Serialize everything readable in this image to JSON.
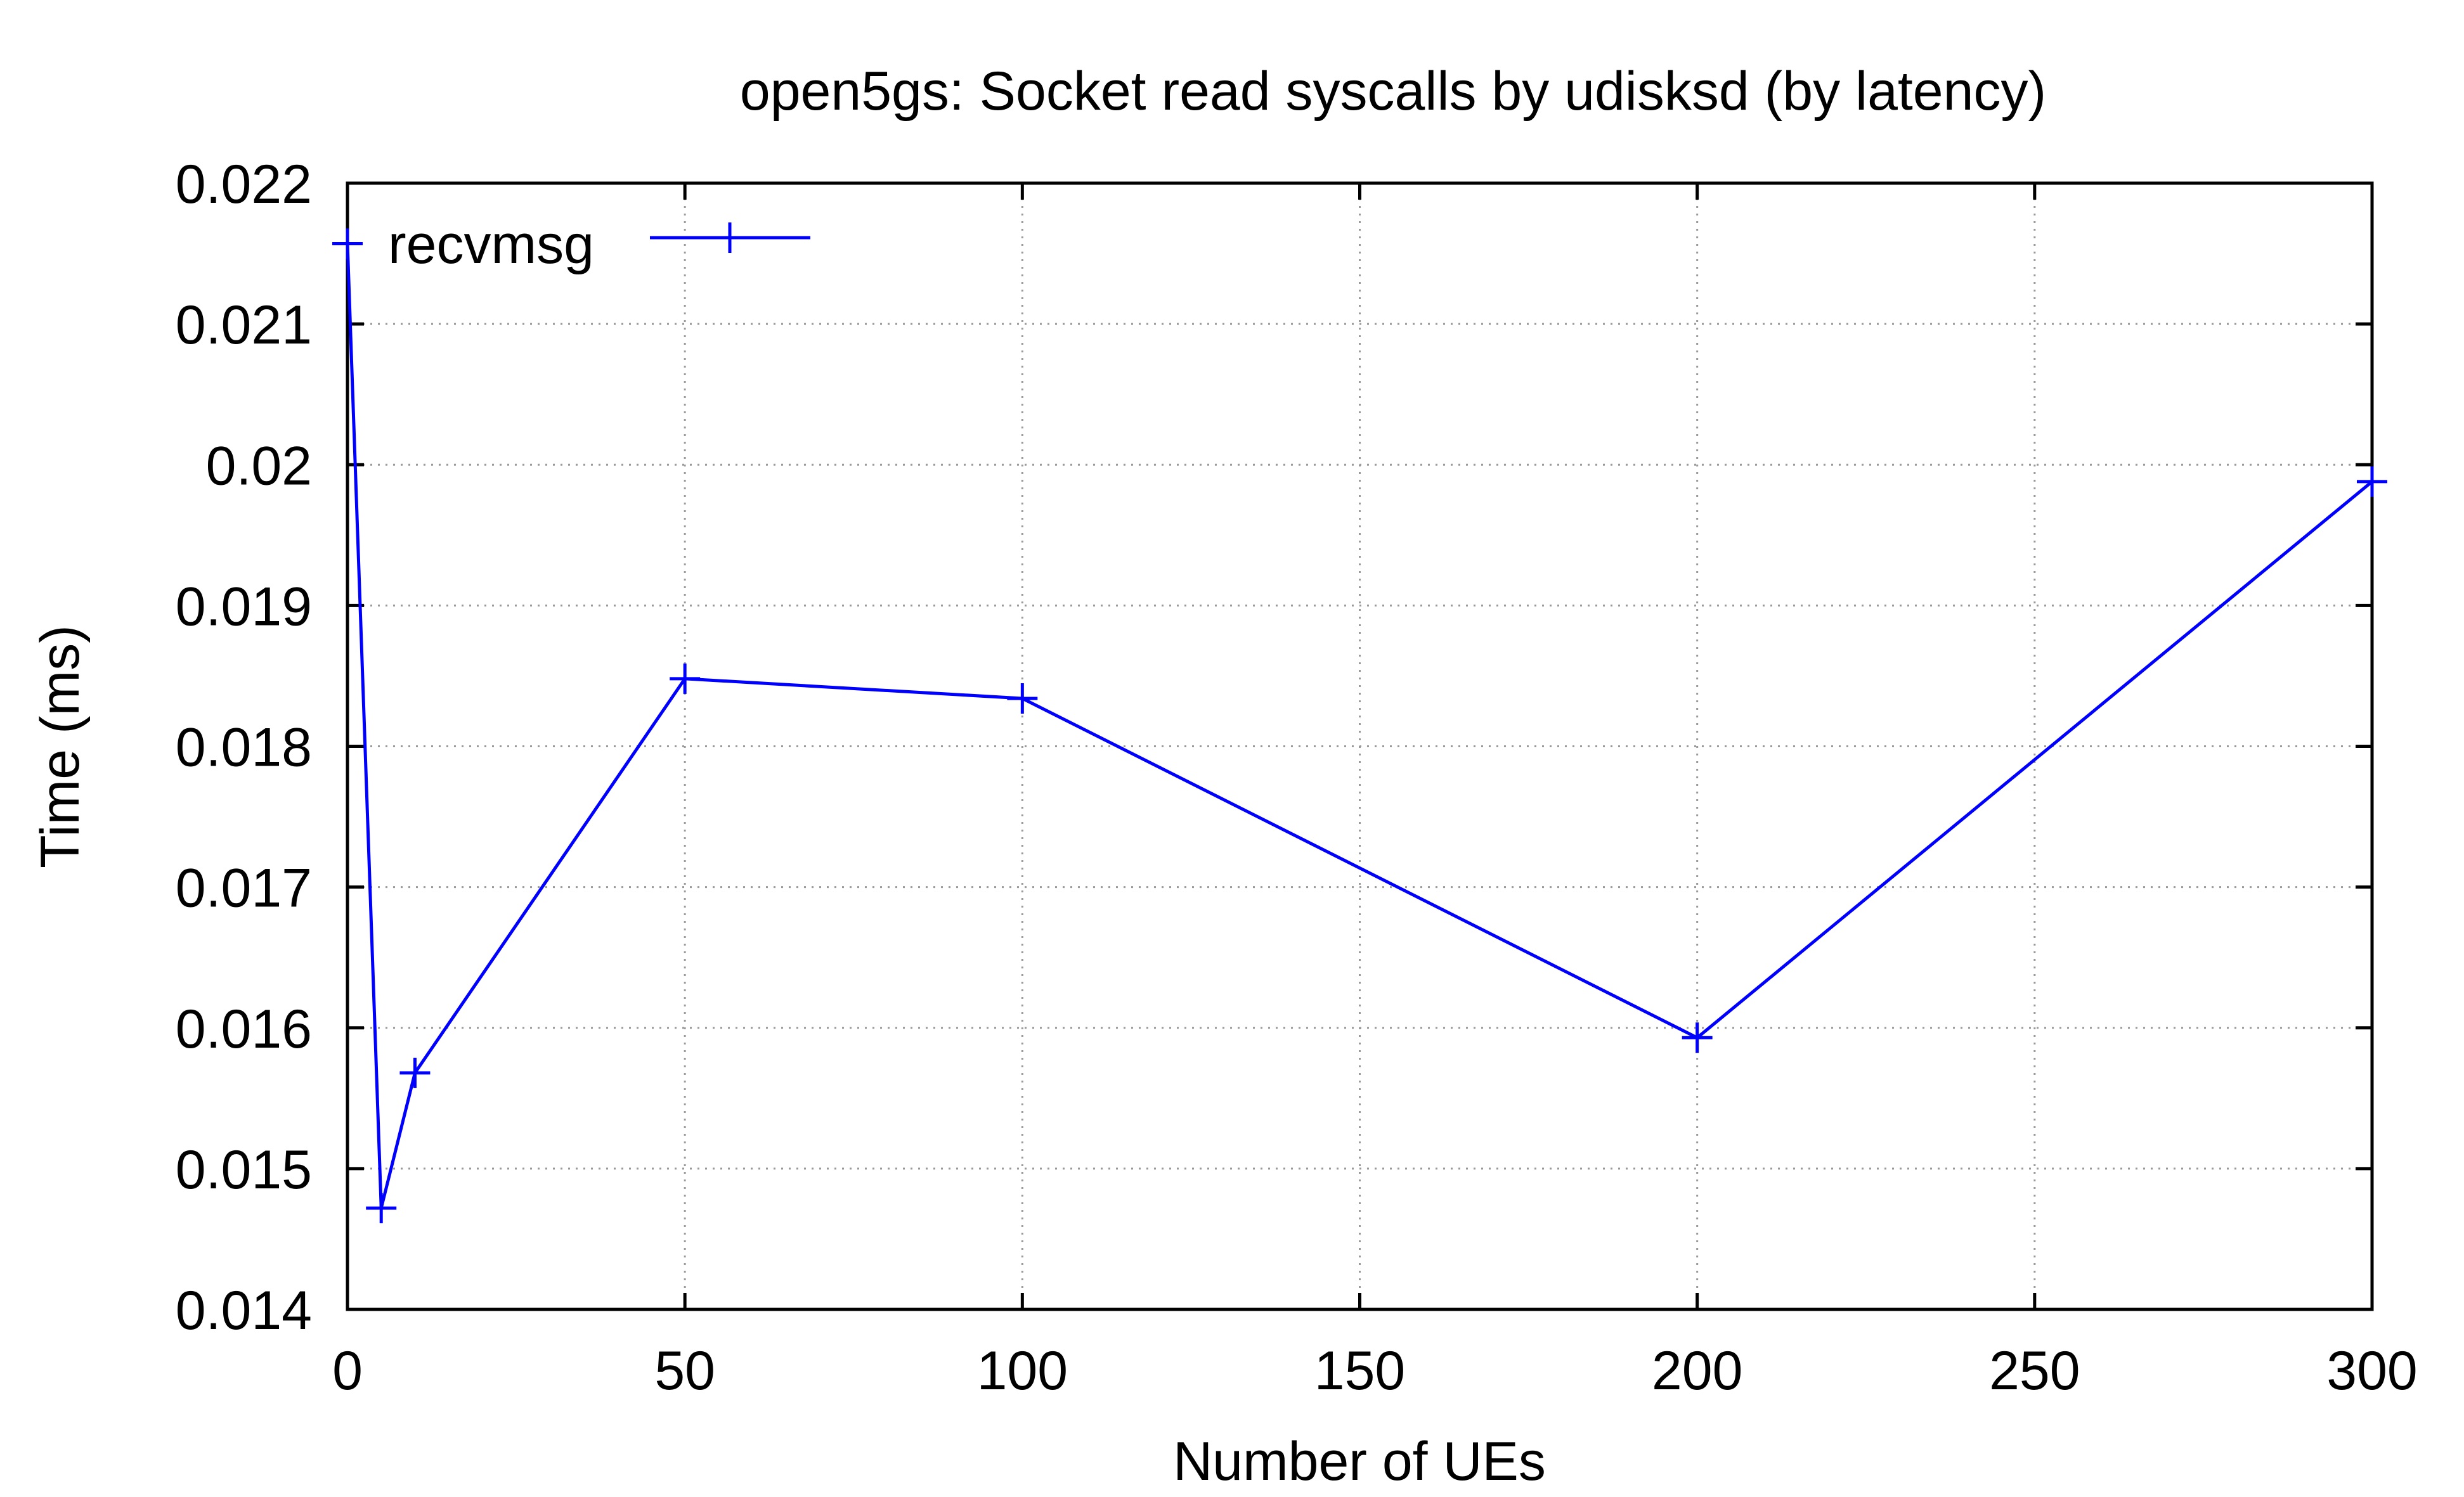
{
  "chart_data": {
    "type": "line",
    "title": "open5gs: Socket read syscalls by udisksd (by latency)",
    "xlabel": "Number of UEs",
    "ylabel": "Time (ms)",
    "xlim": [
      0,
      300
    ],
    "ylim": [
      0.014,
      0.022
    ],
    "xticks": [
      0,
      50,
      100,
      150,
      200,
      250,
      300
    ],
    "xtick_labels": [
      "0",
      "50",
      "100",
      "150",
      "200",
      "250",
      "300"
    ],
    "yticks": [
      0.014,
      0.015,
      0.016,
      0.017,
      0.018,
      0.019,
      0.02,
      0.021,
      0.022
    ],
    "ytick_labels": [
      "0.014",
      "0.015",
      "0.016",
      "0.017",
      "0.018",
      "0.019",
      "0.02",
      "0.021",
      "0.022"
    ],
    "grid": true,
    "legend_position": "top-left",
    "series": [
      {
        "name": "recvmsg",
        "color": "#0000ff",
        "x": [
          0,
          5,
          10,
          50,
          100,
          200,
          300
        ],
        "y": [
          0.02157,
          0.01472,
          0.01568,
          0.01848,
          0.01834,
          0.01593,
          0.01988
        ]
      }
    ]
  }
}
